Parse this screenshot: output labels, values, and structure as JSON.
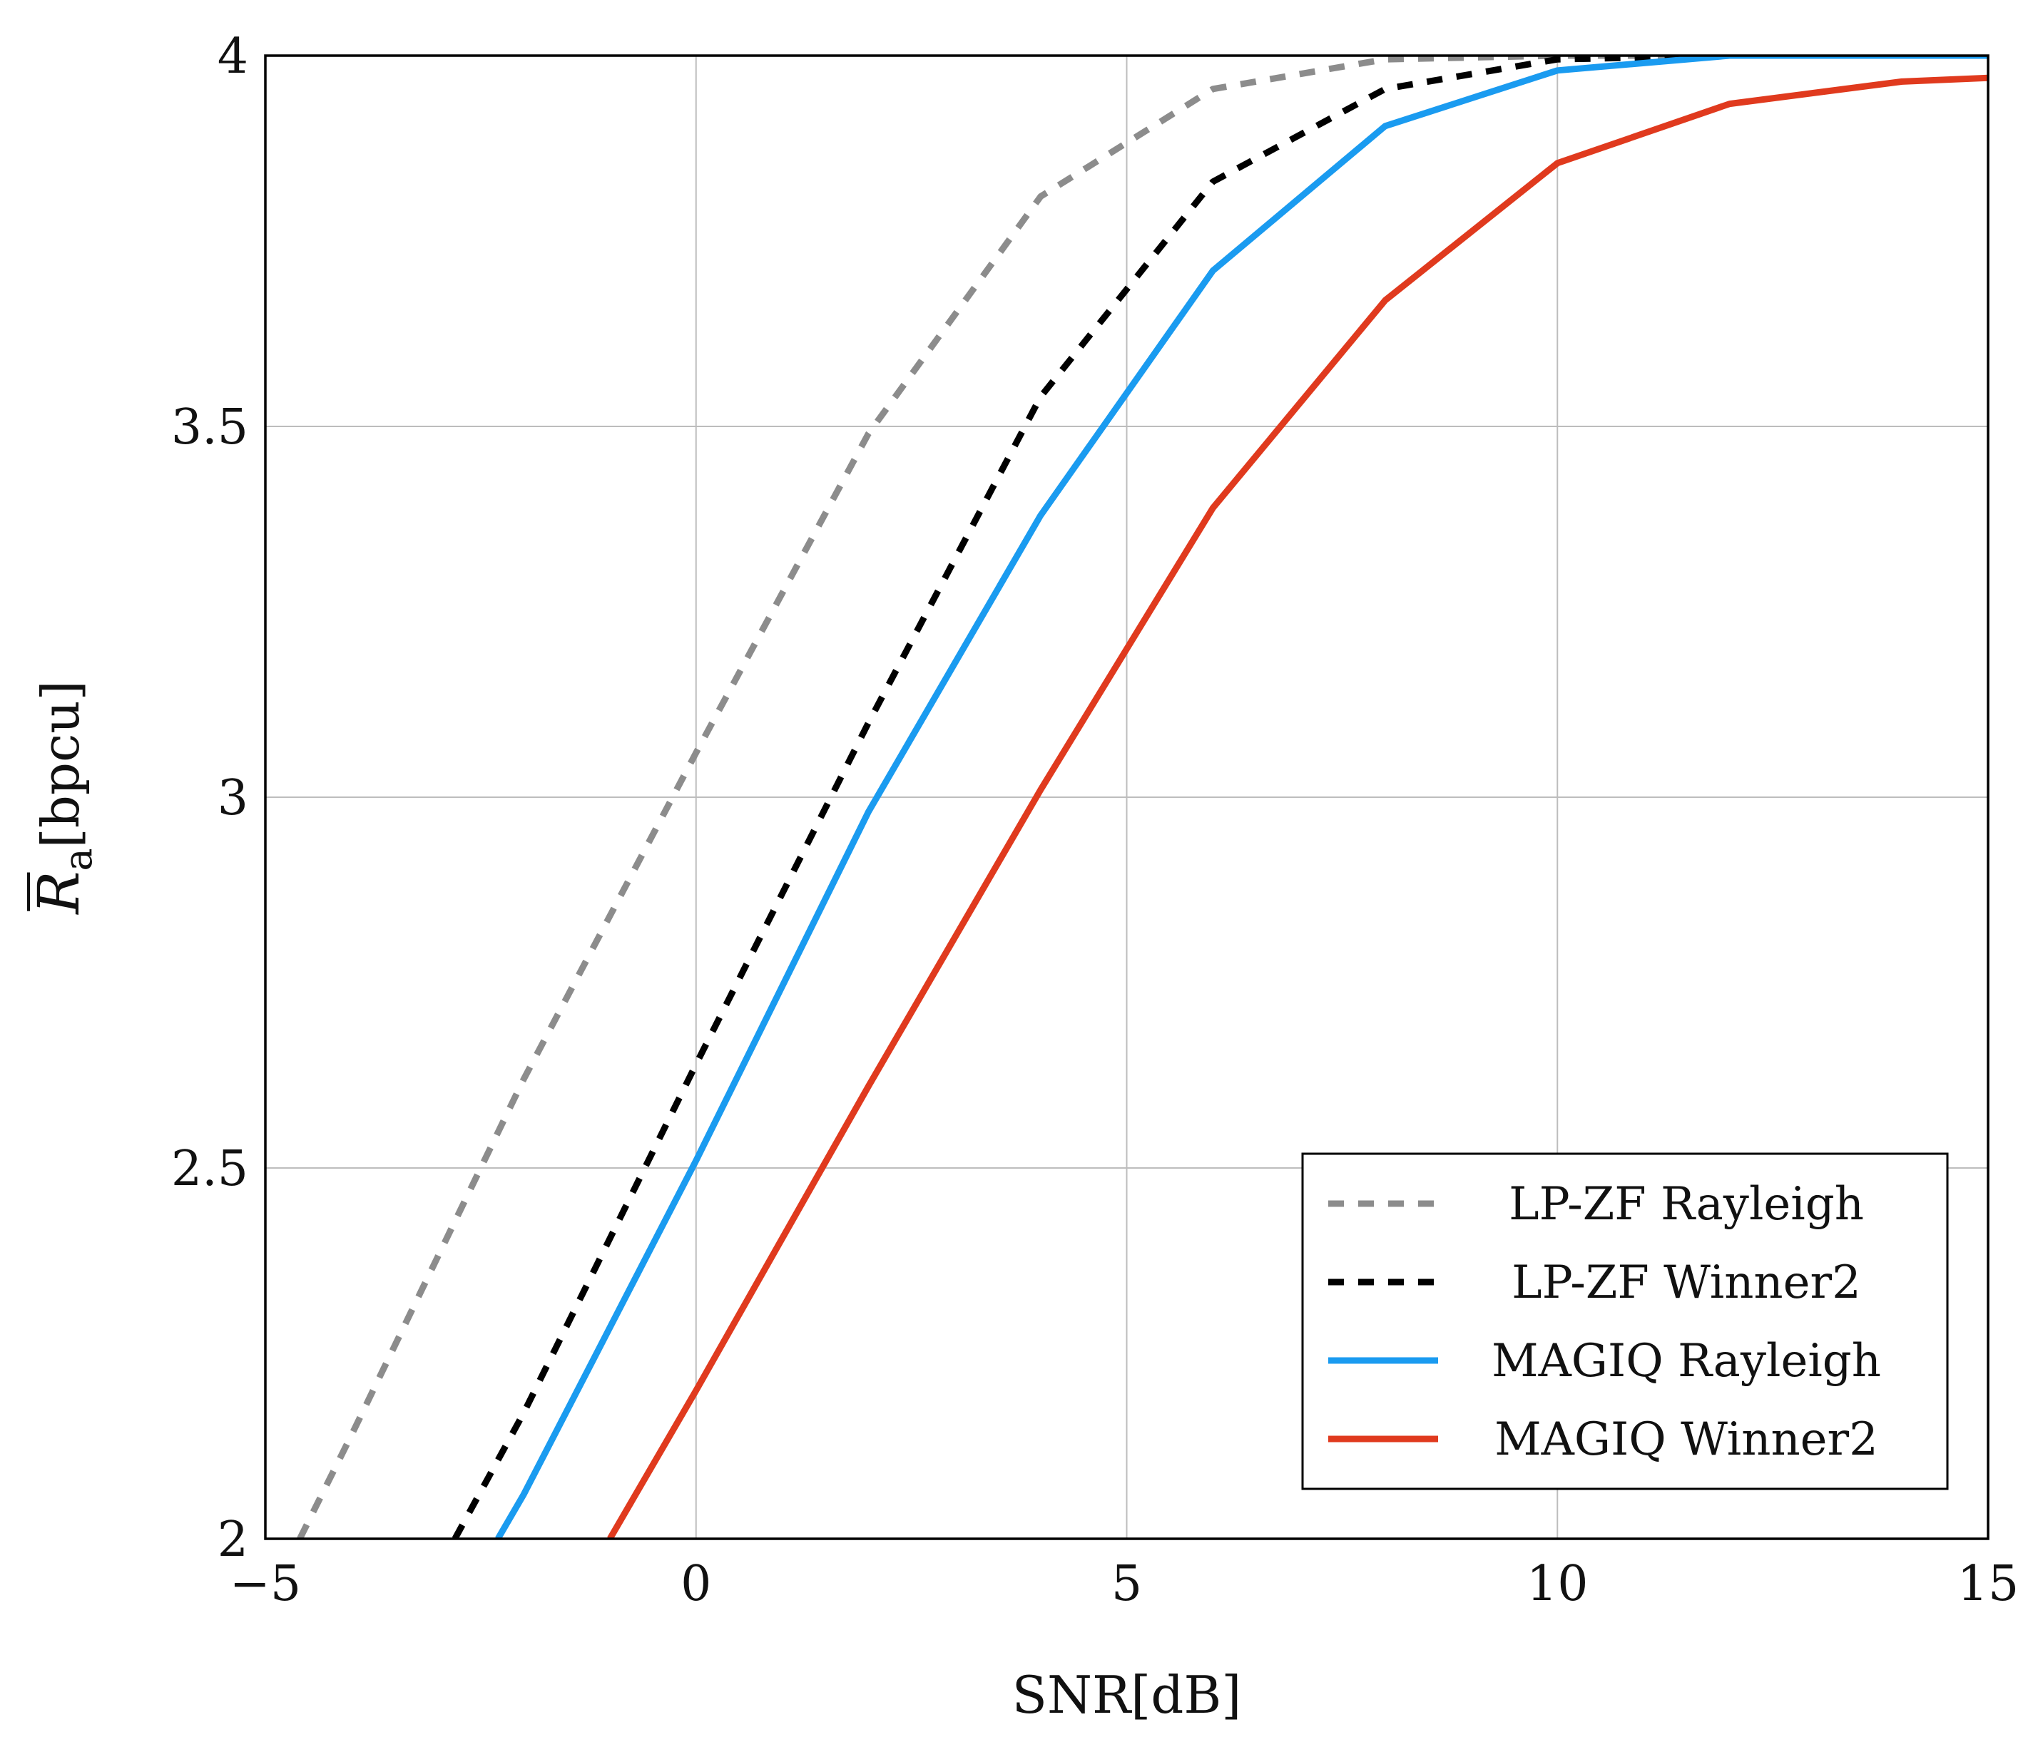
{
  "chart_data": {
    "type": "line",
    "title": "",
    "xlabel": "SNR[dB]",
    "ylabel": {
      "symbol": "R",
      "subscript": "a",
      "unit": "[bpcu]"
    },
    "xlim": [
      -5,
      15
    ],
    "ylim": [
      2,
      4
    ],
    "grid": true,
    "xticks": [
      -5,
      0,
      5,
      10,
      15
    ],
    "xtick_labels": [
      "−5",
      "0",
      "5",
      "10",
      "15"
    ],
    "yticks": [
      2,
      2.5,
      3,
      3.5,
      4
    ],
    "ytick_labels": [
      "2",
      "2.5",
      "3",
      "3.5",
      "4"
    ],
    "legend_position": "bottom-right",
    "series": [
      {
        "name": "LP-ZF Rayleigh",
        "color": "#8c8c8c",
        "style": "dashed",
        "x": [
          -4.6,
          -4,
          -2,
          0,
          2,
          4,
          6,
          8,
          10,
          12,
          14,
          15
        ],
        "y": [
          2.0,
          2.14,
          2.62,
          3.06,
          3.49,
          3.81,
          3.955,
          3.995,
          4.0,
          4.0,
          4.0,
          4.0
        ]
      },
      {
        "name": "LP-ZF Winner2",
        "color": "#000000",
        "style": "dashed",
        "x": [
          -2.8,
          -2,
          0,
          2,
          4,
          6,
          8,
          10,
          12,
          14,
          15
        ],
        "y": [
          2.0,
          2.17,
          2.64,
          3.1,
          3.54,
          3.83,
          3.955,
          3.995,
          4.0,
          4.0,
          4.0
        ]
      },
      {
        "name": "MAGIQ Rayleigh",
        "color": "#1a9bf0",
        "style": "solid",
        "x": [
          -2.3,
          -2,
          0,
          2,
          4,
          6,
          8,
          10,
          12,
          14,
          15
        ],
        "y": [
          2.0,
          2.06,
          2.51,
          2.98,
          3.38,
          3.71,
          3.905,
          3.98,
          4.0,
          4.0,
          4.0
        ]
      },
      {
        "name": "MAGIQ Winner2",
        "color": "#e03a1e",
        "style": "solid",
        "x": [
          -1,
          0,
          2,
          4,
          6,
          8,
          10,
          12,
          14,
          15
        ],
        "y": [
          2.0,
          2.2,
          2.61,
          3.01,
          3.39,
          3.67,
          3.855,
          3.935,
          3.965,
          3.97
        ]
      }
    ]
  }
}
